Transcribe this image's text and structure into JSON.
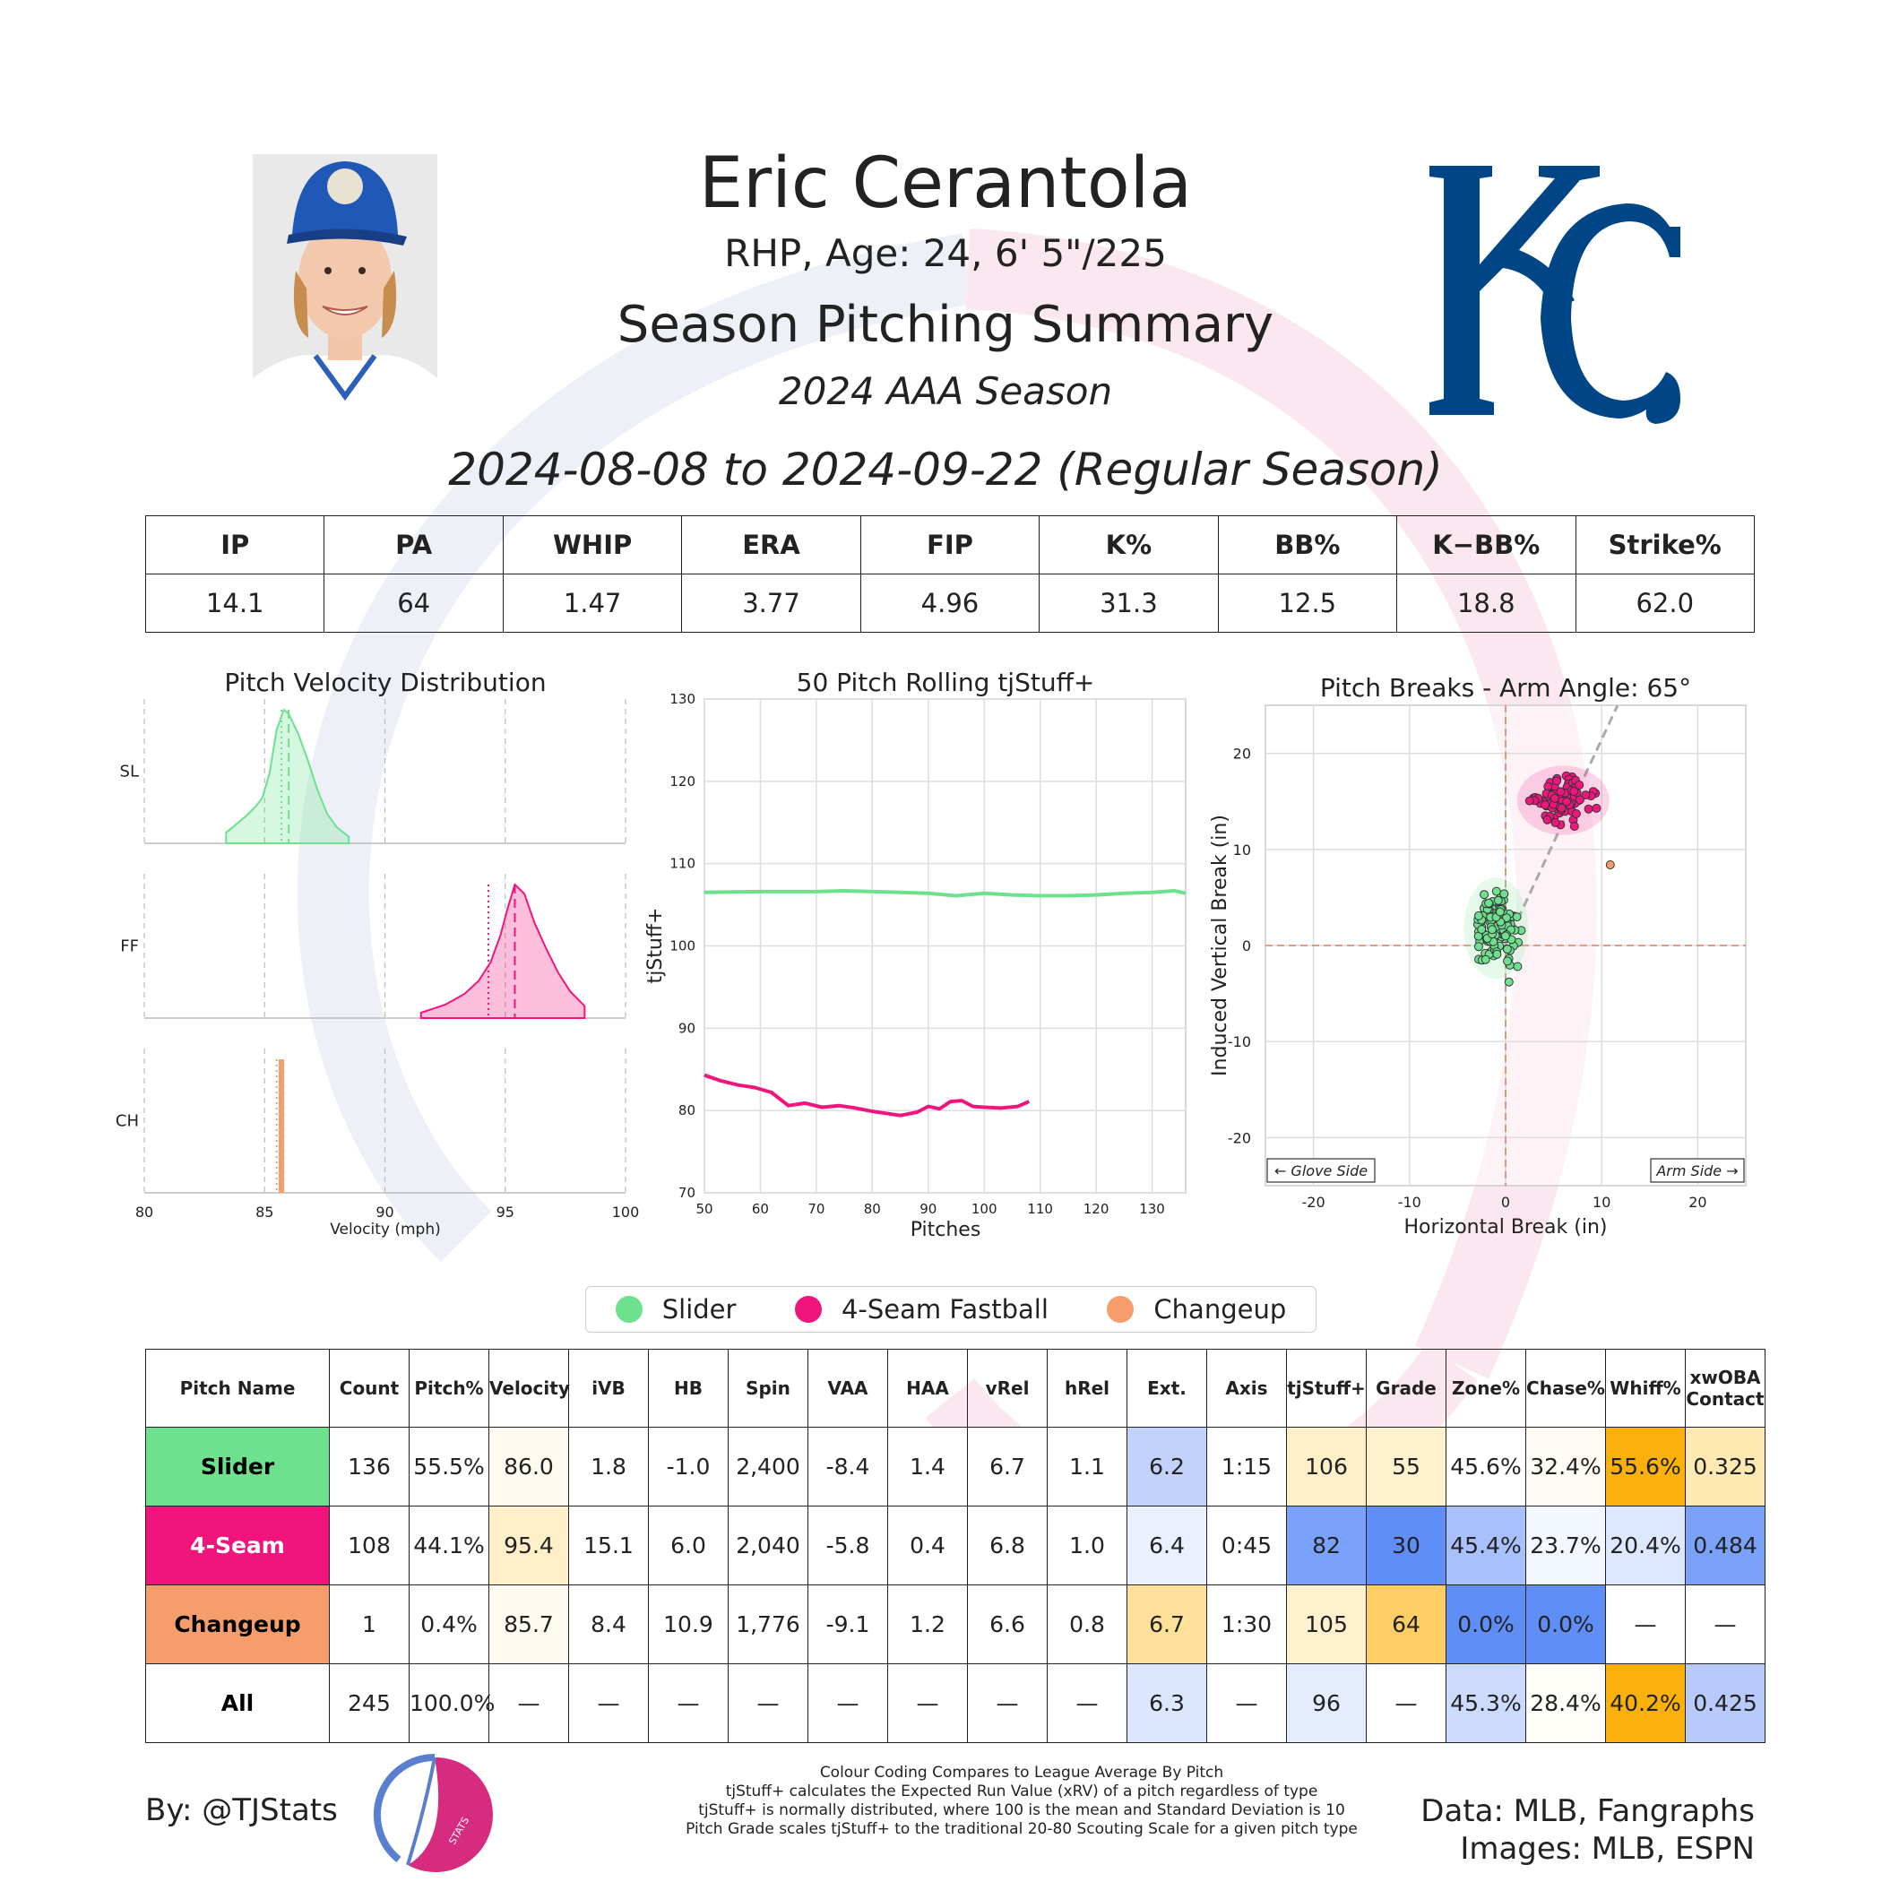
{
  "header": {
    "player_name": "Eric Cerantola",
    "player_bio": "RHP, Age: 24, 6' 5\"/225",
    "report_title": "Season Pitching Summary",
    "season_label": "2024 AAA Season",
    "date_range": "2024-08-08 to 2024-09-22 (Regular Season)"
  },
  "colors": {
    "slider": "#6de18e",
    "fastball": "#f0157d",
    "changeup": "#f59e6b",
    "team_blue": "#004687"
  },
  "stats_table": {
    "headers": [
      "IP",
      "PA",
      "WHIP",
      "ERA",
      "FIP",
      "K%",
      "BB%",
      "K−BB%",
      "Strike%"
    ],
    "values": [
      "14.1",
      "64",
      "1.47",
      "3.77",
      "4.96",
      "31.3",
      "12.5",
      "18.8",
      "62.0"
    ]
  },
  "chart_data": [
    {
      "type": "area",
      "title": "Pitch Velocity Distribution",
      "xlabel": "Velocity (mph)",
      "xlim": [
        80,
        100
      ],
      "xticks": [
        80,
        85,
        90,
        95
      ],
      "series": [
        {
          "name": "SL",
          "x": [
            83.4,
            84.2,
            84.6,
            84.9,
            85.2,
            85.5,
            85.8,
            86.0,
            86.4,
            86.8,
            87.2,
            87.6,
            88.0,
            88.5
          ],
          "density": [
            0.08,
            0.2,
            0.27,
            0.34,
            0.52,
            0.85,
            1.0,
            0.97,
            0.82,
            0.62,
            0.4,
            0.22,
            0.12,
            0.05
          ],
          "mean": 86.0,
          "median": 85.7
        },
        {
          "name": "FF",
          "x": [
            91.5,
            92.5,
            93.3,
            93.9,
            94.4,
            94.8,
            95.1,
            95.4,
            95.8,
            96.2,
            96.7,
            97.2,
            97.7,
            98.3
          ],
          "density": [
            0.04,
            0.1,
            0.18,
            0.28,
            0.42,
            0.62,
            0.82,
            1.0,
            0.93,
            0.72,
            0.52,
            0.34,
            0.2,
            0.09
          ],
          "mean": 95.4,
          "median": 94.3
        },
        {
          "name": "CH",
          "x": [
            85.7
          ],
          "density": [
            1.0
          ],
          "mean": 85.7,
          "median": 85.5
        }
      ]
    },
    {
      "type": "line",
      "title": "50 Pitch Rolling tjStuff+",
      "xlabel": "Pitches",
      "ylabel": "tjStuff+",
      "xlim": [
        50,
        136
      ],
      "ylim": [
        70,
        130
      ],
      "xticks": [
        50,
        60,
        70,
        80,
        90,
        100,
        110,
        120,
        130
      ],
      "yticks": [
        70,
        80,
        90,
        100,
        110,
        120,
        130
      ],
      "series": [
        {
          "name": "Slider",
          "x": [
            50,
            60,
            70,
            75,
            80,
            85,
            90,
            95,
            100,
            105,
            110,
            115,
            120,
            125,
            130,
            134,
            136
          ],
          "y": [
            106.5,
            106.6,
            106.6,
            106.7,
            106.6,
            106.5,
            106.4,
            106.1,
            106.4,
            106.2,
            106.1,
            106.1,
            106.2,
            106.4,
            106.5,
            106.7,
            106.4
          ]
        },
        {
          "name": "4-Seam Fastball",
          "x": [
            50,
            53,
            56,
            59,
            62,
            65,
            68,
            71,
            74,
            77,
            80,
            83,
            85,
            88,
            90,
            92,
            94,
            96,
            98,
            100,
            103,
            106,
            108
          ],
          "y": [
            84.3,
            83.6,
            83.1,
            82.8,
            82.2,
            80.6,
            80.9,
            80.4,
            80.6,
            80.3,
            79.9,
            79.6,
            79.4,
            79.8,
            80.5,
            80.2,
            81.1,
            81.2,
            80.5,
            80.4,
            80.3,
            80.5,
            81.1
          ]
        }
      ]
    },
    {
      "type": "scatter",
      "title": "Pitch Breaks - Arm Angle: 65°",
      "xlabel": "Horizontal Break (in)",
      "ylabel": "Induced Vertical Break (in)",
      "xlim": [
        -25,
        25
      ],
      "ylim": [
        -25,
        25
      ],
      "xticks": [
        -20,
        -10,
        0,
        10,
        20
      ],
      "yticks": [
        -20,
        -10,
        0,
        10,
        20
      ],
      "annotations": [
        "← Glove Side",
        "Arm Side →"
      ],
      "arm_angle_deg": 65,
      "clusters": [
        {
          "name": "Slider",
          "count": 136,
          "center": [
            -1.0,
            1.8
          ],
          "spread": [
            1.4,
            2.2
          ]
        },
        {
          "name": "4-Seam Fastball",
          "count": 108,
          "center": [
            6.0,
            15.1
          ],
          "spread": [
            2.0,
            1.5
          ]
        },
        {
          "name": "Changeup",
          "count": 1,
          "center": [
            10.9,
            8.4
          ],
          "spread": [
            0,
            0
          ]
        }
      ]
    }
  ],
  "legend": {
    "items": [
      {
        "label": "Slider",
        "color": "#6de18e"
      },
      {
        "label": "4-Seam Fastball",
        "color": "#f0157d"
      },
      {
        "label": "Changeup",
        "color": "#f59e6b"
      }
    ]
  },
  "pitch_table": {
    "headers": [
      "Pitch Name",
      "Count",
      "Pitch%",
      "Velocity",
      "iVB",
      "HB",
      "Spin",
      "VAA",
      "HAA",
      "vRel",
      "hRel",
      "Ext.",
      "Axis",
      "tjStuff+",
      "Grade",
      "Zone%",
      "Chase%",
      "Whiff%",
      "xwOBA Contact"
    ],
    "rows": [
      {
        "name": "Slider",
        "name_bg": "#6de18e",
        "name_color": "#000000",
        "cells": [
          "136",
          "55.5%",
          "86.0",
          "1.8",
          "-1.0",
          "2,400",
          "-8.4",
          "1.4",
          "6.7",
          "1.1",
          "6.2",
          "1:15",
          "106",
          "55",
          "45.6%",
          "32.4%",
          "55.6%",
          "0.325"
        ],
        "bg": [
          "#ffffff",
          "#ffffff",
          "#fffaf0",
          "#ffffff",
          "#ffffff",
          "#ffffff",
          "#ffffff",
          "#ffffff",
          "#ffffff",
          "#ffffff",
          "#c2d2fb",
          "#ffffff",
          "#feefc8",
          "#fef1cd",
          "#ffffff",
          "#fffcf5",
          "#fbb10d",
          "#fee9b3"
        ]
      },
      {
        "name": "4-Seam",
        "name_bg": "#f0157d",
        "name_color": "#ffffff",
        "cells": [
          "108",
          "44.1%",
          "95.4",
          "15.1",
          "6.0",
          "2,040",
          "-5.8",
          "0.4",
          "6.8",
          "1.0",
          "6.4",
          "0:45",
          "82",
          "30",
          "45.4%",
          "23.7%",
          "20.4%",
          "0.484"
        ],
        "bg": [
          "#ffffff",
          "#ffffff",
          "#feefc8",
          "#ffffff",
          "#ffffff",
          "#ffffff",
          "#ffffff",
          "#ffffff",
          "#ffffff",
          "#ffffff",
          "#eaf0fe",
          "#ffffff",
          "#7aa2fa",
          "#5f8ef6",
          "#a9c0fb",
          "#f3f7ff",
          "#dde7fd",
          "#7ba2f9"
        ]
      },
      {
        "name": "Changeup",
        "name_bg": "#f59e6b",
        "name_color": "#000000",
        "cells": [
          "1",
          "0.4%",
          "85.7",
          "8.4",
          "10.9",
          "1,776",
          "-9.1",
          "1.2",
          "6.6",
          "0.8",
          "6.7",
          "1:30",
          "105",
          "64",
          "0.0%",
          "0.0%",
          "—",
          "—"
        ],
        "bg": [
          "#ffffff",
          "#ffffff",
          "#fffaf0",
          "#ffffff",
          "#ffffff",
          "#ffffff",
          "#ffffff",
          "#ffffff",
          "#ffffff",
          "#ffffff",
          "#fee09a",
          "#ffffff",
          "#fef1cd",
          "#fdce66",
          "#5f8ef6",
          "#5f8ef6",
          "#ffffff",
          "#ffffff"
        ]
      },
      {
        "name": "All",
        "name_bg": "#ffffff",
        "name_color": "#000000",
        "cells": [
          "245",
          "100.0%",
          "—",
          "—",
          "—",
          "—",
          "—",
          "—",
          "—",
          "—",
          "6.3",
          "—",
          "96",
          "—",
          "45.3%",
          "28.4%",
          "40.2%",
          "0.425"
        ],
        "bg": [
          "#ffffff",
          "#ffffff",
          "#ffffff",
          "#ffffff",
          "#ffffff",
          "#ffffff",
          "#ffffff",
          "#ffffff",
          "#ffffff",
          "#ffffff",
          "#dce6fd",
          "#ffffff",
          "#e4ecfe",
          "#ffffff",
          "#ccdafc",
          "#fffdf8",
          "#fbb10d",
          "#b7cafb"
        ]
      }
    ]
  },
  "footer": {
    "byline": "By: @TJStats",
    "footnotes": [
      "Colour Coding Compares to League Average By Pitch",
      "tjStuff+ calculates the Expected Run Value (xRV) of a pitch regardless of type",
      "tjStuff+ is normally distributed, where 100 is the mean and Standard Deviation is 10",
      "Pitch Grade scales tjStuff+ to the traditional 20-80 Scouting Scale for a given pitch type"
    ],
    "data_credit_1": "Data: MLB, Fangraphs",
    "data_credit_2": "Images: MLB, ESPN",
    "logo_text": "STATS"
  }
}
